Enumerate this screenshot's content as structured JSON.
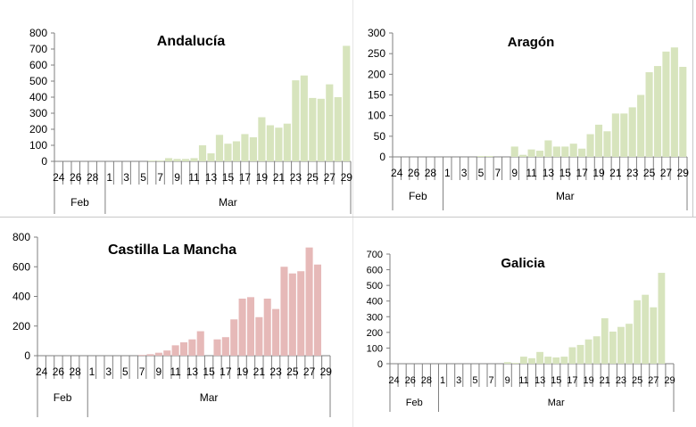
{
  "chart_data": [
    {
      "type": "bar",
      "title": "Andalucía",
      "color": "#d7e4bd",
      "ylim": [
        0,
        800
      ],
      "yticks": [
        "0",
        "100",
        "200",
        "300",
        "400",
        "500",
        "600",
        "700",
        "800"
      ],
      "categories": [
        "24",
        "25",
        "26",
        "27",
        "28",
        "29",
        "1",
        "2",
        "3",
        "4",
        "5",
        "6",
        "7",
        "8",
        "9",
        "10",
        "11",
        "12",
        "13",
        "14",
        "15",
        "16",
        "17",
        "18",
        "19",
        "20",
        "21",
        "22",
        "23",
        "24",
        "25",
        "26",
        "27",
        "28",
        "29"
      ],
      "xtick_labels": [
        "24",
        "26",
        "28",
        "1",
        "3",
        "5",
        "7",
        "9",
        "11",
        "13",
        "15",
        "17",
        "19",
        "21",
        "23",
        "25",
        "27",
        "29"
      ],
      "month_labels": [
        "Feb",
        "Mar"
      ],
      "values": [
        0,
        0,
        0,
        0,
        0,
        0,
        0,
        0,
        0,
        0,
        0,
        5,
        5,
        20,
        15,
        15,
        20,
        100,
        50,
        165,
        110,
        125,
        170,
        150,
        275,
        225,
        210,
        235,
        505,
        535,
        395,
        390,
        480,
        400,
        720
      ]
    },
    {
      "type": "bar",
      "title": "Aragón",
      "color": "#d7e4bd",
      "ylim": [
        0,
        300
      ],
      "yticks": [
        "0",
        "50",
        "100",
        "150",
        "200",
        "250",
        "300"
      ],
      "categories": [
        "24",
        "25",
        "26",
        "27",
        "28",
        "29",
        "1",
        "2",
        "3",
        "4",
        "5",
        "6",
        "7",
        "8",
        "9",
        "10",
        "11",
        "12",
        "13",
        "14",
        "15",
        "16",
        "17",
        "18",
        "19",
        "20",
        "21",
        "22",
        "23",
        "24",
        "25",
        "26",
        "27",
        "28",
        "29"
      ],
      "xtick_labels": [
        "24",
        "26",
        "28",
        "1",
        "3",
        "5",
        "7",
        "9",
        "11",
        "13",
        "15",
        "17",
        "19",
        "21",
        "23",
        "25",
        "27",
        "29"
      ],
      "month_labels": [
        "Feb",
        "Mar"
      ],
      "values": [
        0,
        0,
        0,
        0,
        0,
        0,
        0,
        0,
        0,
        0,
        2,
        2,
        0,
        0,
        25,
        5,
        18,
        15,
        40,
        25,
        25,
        32,
        20,
        55,
        78,
        62,
        105,
        105,
        120,
        150,
        205,
        220,
        255,
        265,
        218
      ]
    },
    {
      "type": "bar",
      "title": "Castilla La Mancha",
      "color": "#e6b9b8",
      "ylim": [
        0,
        800
      ],
      "yticks": [
        "0",
        "200",
        "400",
        "600",
        "800"
      ],
      "categories": [
        "24",
        "25",
        "26",
        "27",
        "28",
        "29",
        "1",
        "2",
        "3",
        "4",
        "5",
        "6",
        "7",
        "8",
        "9",
        "10",
        "11",
        "12",
        "13",
        "14",
        "15",
        "16",
        "17",
        "18",
        "19",
        "20",
        "21",
        "22",
        "23",
        "24",
        "25",
        "26",
        "27",
        "28",
        "29"
      ],
      "xtick_labels": [
        "24",
        "26",
        "28",
        "1",
        "3",
        "5",
        "7",
        "9",
        "11",
        "13",
        "15",
        "17",
        "19",
        "21",
        "23",
        "25",
        "27",
        "29"
      ],
      "month_labels": [
        "Feb",
        "Mar"
      ],
      "values": [
        0,
        0,
        0,
        0,
        0,
        0,
        0,
        0,
        0,
        0,
        0,
        0,
        5,
        10,
        20,
        35,
        70,
        90,
        110,
        165,
        0,
        110,
        125,
        245,
        385,
        395,
        260,
        385,
        315,
        600,
        555,
        570,
        730,
        615,
        0
      ]
    },
    {
      "type": "bar",
      "title": "Galicia",
      "color": "#d7e4bd",
      "ylim": [
        0,
        700
      ],
      "yticks": [
        "0",
        "100",
        "200",
        "300",
        "400",
        "500",
        "600",
        "700"
      ],
      "categories": [
        "24",
        "25",
        "26",
        "27",
        "28",
        "29",
        "1",
        "2",
        "3",
        "4",
        "5",
        "6",
        "7",
        "8",
        "9",
        "10",
        "11",
        "12",
        "13",
        "14",
        "15",
        "16",
        "17",
        "18",
        "19",
        "20",
        "21",
        "22",
        "23",
        "24",
        "25",
        "26",
        "27",
        "28",
        "29"
      ],
      "xtick_labels": [
        "24",
        "26",
        "28",
        "1",
        "3",
        "5",
        "7",
        "9",
        "11",
        "13",
        "15",
        "17",
        "19",
        "21",
        "23",
        "25",
        "27",
        "29"
      ],
      "month_labels": [
        "Feb",
        "Mar"
      ],
      "values": [
        0,
        0,
        0,
        0,
        0,
        0,
        0,
        0,
        0,
        0,
        0,
        0,
        0,
        0,
        10,
        5,
        45,
        35,
        75,
        45,
        40,
        45,
        105,
        120,
        155,
        175,
        290,
        205,
        235,
        255,
        405,
        440,
        360,
        580,
        0
      ]
    }
  ]
}
